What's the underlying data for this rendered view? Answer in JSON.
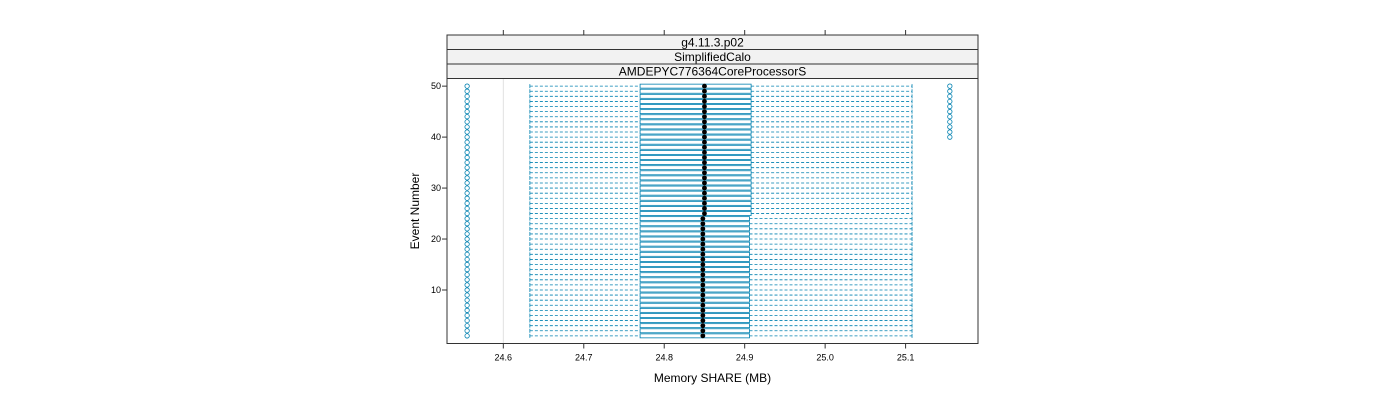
{
  "chart_data": {
    "type": "box",
    "strips": [
      "g4.11.3.p02",
      "SimplifiedCalo",
      "AMDEPYC776364CoreProcessorS"
    ],
    "xlabel": "Memory SHARE (MB)",
    "ylabel": "Event Number",
    "xlim": [
      24.53,
      25.19
    ],
    "ylim": [
      -0.5,
      51.5
    ],
    "x_ticks": [
      24.6,
      24.7,
      24.8,
      24.9,
      25.0,
      25.1
    ],
    "x_tick_labels": [
      "24.6",
      "24.7",
      "24.8",
      "24.9",
      "25.0",
      "25.1"
    ],
    "y_ticks": [
      10,
      20,
      30,
      40,
      50
    ],
    "y_tick_labels": [
      "10",
      "20",
      "30",
      "40",
      "50"
    ],
    "reference_line_x": 24.6,
    "box_color": "#0080b0",
    "median_color": "#000000",
    "boxes": [
      {
        "event": 1,
        "whisker_low": 24.633,
        "q1": 24.77,
        "median": 24.848,
        "q3": 24.906,
        "whisker_high": 25.108,
        "outliers": [
          24.555
        ]
      },
      {
        "event": 2,
        "whisker_low": 24.633,
        "q1": 24.77,
        "median": 24.848,
        "q3": 24.906,
        "whisker_high": 25.108,
        "outliers": [
          24.555
        ]
      },
      {
        "event": 3,
        "whisker_low": 24.633,
        "q1": 24.77,
        "median": 24.848,
        "q3": 24.906,
        "whisker_high": 25.108,
        "outliers": [
          24.555
        ]
      },
      {
        "event": 4,
        "whisker_low": 24.633,
        "q1": 24.77,
        "median": 24.848,
        "q3": 24.906,
        "whisker_high": 25.108,
        "outliers": [
          24.555
        ]
      },
      {
        "event": 5,
        "whisker_low": 24.633,
        "q1": 24.77,
        "median": 24.848,
        "q3": 24.906,
        "whisker_high": 25.108,
        "outliers": [
          24.555
        ]
      },
      {
        "event": 6,
        "whisker_low": 24.633,
        "q1": 24.77,
        "median": 24.848,
        "q3": 24.906,
        "whisker_high": 25.108,
        "outliers": [
          24.555
        ]
      },
      {
        "event": 7,
        "whisker_low": 24.633,
        "q1": 24.77,
        "median": 24.848,
        "q3": 24.906,
        "whisker_high": 25.108,
        "outliers": [
          24.555
        ]
      },
      {
        "event": 8,
        "whisker_low": 24.633,
        "q1": 24.77,
        "median": 24.848,
        "q3": 24.906,
        "whisker_high": 25.108,
        "outliers": [
          24.555
        ]
      },
      {
        "event": 9,
        "whisker_low": 24.633,
        "q1": 24.77,
        "median": 24.848,
        "q3": 24.906,
        "whisker_high": 25.108,
        "outliers": [
          24.555
        ]
      },
      {
        "event": 10,
        "whisker_low": 24.633,
        "q1": 24.77,
        "median": 24.848,
        "q3": 24.906,
        "whisker_high": 25.108,
        "outliers": [
          24.555
        ]
      },
      {
        "event": 11,
        "whisker_low": 24.633,
        "q1": 24.77,
        "median": 24.848,
        "q3": 24.906,
        "whisker_high": 25.108,
        "outliers": [
          24.555
        ]
      },
      {
        "event": 12,
        "whisker_low": 24.633,
        "q1": 24.77,
        "median": 24.848,
        "q3": 24.906,
        "whisker_high": 25.108,
        "outliers": [
          24.555
        ]
      },
      {
        "event": 13,
        "whisker_low": 24.633,
        "q1": 24.77,
        "median": 24.848,
        "q3": 24.906,
        "whisker_high": 25.108,
        "outliers": [
          24.555
        ]
      },
      {
        "event": 14,
        "whisker_low": 24.633,
        "q1": 24.77,
        "median": 24.848,
        "q3": 24.906,
        "whisker_high": 25.108,
        "outliers": [
          24.555
        ]
      },
      {
        "event": 15,
        "whisker_low": 24.633,
        "q1": 24.77,
        "median": 24.848,
        "q3": 24.906,
        "whisker_high": 25.108,
        "outliers": [
          24.555
        ]
      },
      {
        "event": 16,
        "whisker_low": 24.633,
        "q1": 24.77,
        "median": 24.848,
        "q3": 24.906,
        "whisker_high": 25.108,
        "outliers": [
          24.555
        ]
      },
      {
        "event": 17,
        "whisker_low": 24.633,
        "q1": 24.77,
        "median": 24.848,
        "q3": 24.906,
        "whisker_high": 25.108,
        "outliers": [
          24.555
        ]
      },
      {
        "event": 18,
        "whisker_low": 24.633,
        "q1": 24.77,
        "median": 24.848,
        "q3": 24.906,
        "whisker_high": 25.108,
        "outliers": [
          24.555
        ]
      },
      {
        "event": 19,
        "whisker_low": 24.633,
        "q1": 24.77,
        "median": 24.848,
        "q3": 24.906,
        "whisker_high": 25.108,
        "outliers": [
          24.555
        ]
      },
      {
        "event": 20,
        "whisker_low": 24.633,
        "q1": 24.77,
        "median": 24.848,
        "q3": 24.906,
        "whisker_high": 25.108,
        "outliers": [
          24.555
        ]
      },
      {
        "event": 21,
        "whisker_low": 24.633,
        "q1": 24.77,
        "median": 24.848,
        "q3": 24.906,
        "whisker_high": 25.108,
        "outliers": [
          24.555
        ]
      },
      {
        "event": 22,
        "whisker_low": 24.633,
        "q1": 24.77,
        "median": 24.848,
        "q3": 24.906,
        "whisker_high": 25.108,
        "outliers": [
          24.555
        ]
      },
      {
        "event": 23,
        "whisker_low": 24.633,
        "q1": 24.77,
        "median": 24.848,
        "q3": 24.906,
        "whisker_high": 25.108,
        "outliers": [
          24.555
        ]
      },
      {
        "event": 24,
        "whisker_low": 24.633,
        "q1": 24.77,
        "median": 24.848,
        "q3": 24.906,
        "whisker_high": 25.108,
        "outliers": [
          24.555
        ]
      },
      {
        "event": 25,
        "whisker_low": 24.633,
        "q1": 24.77,
        "median": 24.85,
        "q3": 24.908,
        "whisker_high": 25.108,
        "outliers": [
          24.555
        ]
      },
      {
        "event": 26,
        "whisker_low": 24.633,
        "q1": 24.77,
        "median": 24.85,
        "q3": 24.908,
        "whisker_high": 25.108,
        "outliers": [
          24.555
        ]
      },
      {
        "event": 27,
        "whisker_low": 24.633,
        "q1": 24.77,
        "median": 24.85,
        "q3": 24.908,
        "whisker_high": 25.108,
        "outliers": [
          24.555
        ]
      },
      {
        "event": 28,
        "whisker_low": 24.633,
        "q1": 24.77,
        "median": 24.85,
        "q3": 24.908,
        "whisker_high": 25.108,
        "outliers": [
          24.555
        ]
      },
      {
        "event": 29,
        "whisker_low": 24.633,
        "q1": 24.77,
        "median": 24.85,
        "q3": 24.908,
        "whisker_high": 25.108,
        "outliers": [
          24.555
        ]
      },
      {
        "event": 30,
        "whisker_low": 24.633,
        "q1": 24.77,
        "median": 24.85,
        "q3": 24.908,
        "whisker_high": 25.108,
        "outliers": [
          24.555
        ]
      },
      {
        "event": 31,
        "whisker_low": 24.633,
        "q1": 24.77,
        "median": 24.85,
        "q3": 24.908,
        "whisker_high": 25.108,
        "outliers": [
          24.555
        ]
      },
      {
        "event": 32,
        "whisker_low": 24.633,
        "q1": 24.77,
        "median": 24.85,
        "q3": 24.908,
        "whisker_high": 25.108,
        "outliers": [
          24.555
        ]
      },
      {
        "event": 33,
        "whisker_low": 24.633,
        "q1": 24.77,
        "median": 24.85,
        "q3": 24.908,
        "whisker_high": 25.108,
        "outliers": [
          24.555
        ]
      },
      {
        "event": 34,
        "whisker_low": 24.633,
        "q1": 24.77,
        "median": 24.85,
        "q3": 24.908,
        "whisker_high": 25.108,
        "outliers": [
          24.555
        ]
      },
      {
        "event": 35,
        "whisker_low": 24.633,
        "q1": 24.77,
        "median": 24.85,
        "q3": 24.908,
        "whisker_high": 25.108,
        "outliers": [
          24.555
        ]
      },
      {
        "event": 36,
        "whisker_low": 24.633,
        "q1": 24.77,
        "median": 24.85,
        "q3": 24.908,
        "whisker_high": 25.108,
        "outliers": [
          24.555
        ]
      },
      {
        "event": 37,
        "whisker_low": 24.633,
        "q1": 24.77,
        "median": 24.85,
        "q3": 24.908,
        "whisker_high": 25.108,
        "outliers": [
          24.555
        ]
      },
      {
        "event": 38,
        "whisker_low": 24.633,
        "q1": 24.77,
        "median": 24.85,
        "q3": 24.908,
        "whisker_high": 25.108,
        "outliers": [
          24.555
        ]
      },
      {
        "event": 39,
        "whisker_low": 24.633,
        "q1": 24.77,
        "median": 24.85,
        "q3": 24.908,
        "whisker_high": 25.108,
        "outliers": [
          24.555
        ]
      },
      {
        "event": 40,
        "whisker_low": 24.633,
        "q1": 24.77,
        "median": 24.85,
        "q3": 24.908,
        "whisker_high": 25.108,
        "outliers": [
          24.555,
          25.155
        ]
      },
      {
        "event": 41,
        "whisker_low": 24.633,
        "q1": 24.77,
        "median": 24.85,
        "q3": 24.908,
        "whisker_high": 25.108,
        "outliers": [
          24.555,
          25.155
        ]
      },
      {
        "event": 42,
        "whisker_low": 24.633,
        "q1": 24.77,
        "median": 24.85,
        "q3": 24.908,
        "whisker_high": 25.108,
        "outliers": [
          24.555,
          25.155
        ]
      },
      {
        "event": 43,
        "whisker_low": 24.633,
        "q1": 24.77,
        "median": 24.85,
        "q3": 24.908,
        "whisker_high": 25.108,
        "outliers": [
          24.555,
          25.155
        ]
      },
      {
        "event": 44,
        "whisker_low": 24.633,
        "q1": 24.77,
        "median": 24.85,
        "q3": 24.908,
        "whisker_high": 25.108,
        "outliers": [
          24.555,
          25.155
        ]
      },
      {
        "event": 45,
        "whisker_low": 24.633,
        "q1": 24.77,
        "median": 24.85,
        "q3": 24.908,
        "whisker_high": 25.108,
        "outliers": [
          24.555,
          25.155
        ]
      },
      {
        "event": 46,
        "whisker_low": 24.633,
        "q1": 24.77,
        "median": 24.85,
        "q3": 24.908,
        "whisker_high": 25.108,
        "outliers": [
          24.555,
          25.155
        ]
      },
      {
        "event": 47,
        "whisker_low": 24.633,
        "q1": 24.77,
        "median": 24.85,
        "q3": 24.908,
        "whisker_high": 25.108,
        "outliers": [
          24.555,
          25.155
        ]
      },
      {
        "event": 48,
        "whisker_low": 24.633,
        "q1": 24.77,
        "median": 24.85,
        "q3": 24.908,
        "whisker_high": 25.108,
        "outliers": [
          24.555,
          25.155
        ]
      },
      {
        "event": 49,
        "whisker_low": 24.633,
        "q1": 24.77,
        "median": 24.85,
        "q3": 24.908,
        "whisker_high": 25.108,
        "outliers": [
          24.555,
          25.155
        ]
      },
      {
        "event": 50,
        "whisker_low": 24.633,
        "q1": 24.77,
        "median": 24.85,
        "q3": 24.908,
        "whisker_high": 25.108,
        "outliers": [
          24.555,
          25.155
        ]
      }
    ]
  }
}
